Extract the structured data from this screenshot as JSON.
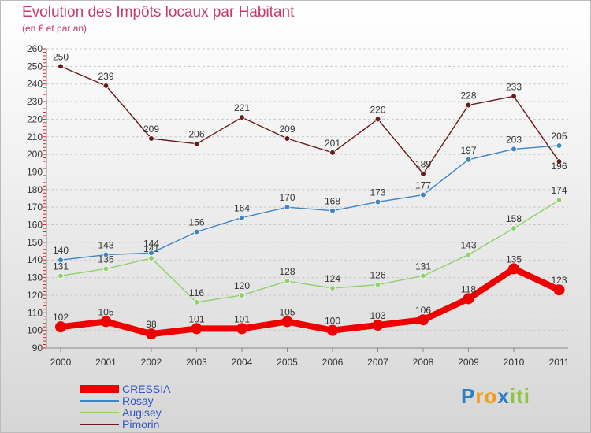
{
  "chart_data": {
    "type": "line",
    "title": "Evolution des Impôts locaux par Habitant",
    "subtitle": "(en € et par an)",
    "x": [
      "2000",
      "2001",
      "2002",
      "2003",
      "2004",
      "2005",
      "2006",
      "2007",
      "2008",
      "2009",
      "2010",
      "2011"
    ],
    "y_ticks": [
      "90",
      "100",
      "110",
      "120",
      "130",
      "140",
      "150",
      "160",
      "170",
      "180",
      "190",
      "200",
      "210",
      "220",
      "230",
      "240",
      "250",
      "260"
    ],
    "ylim": [
      90,
      260
    ],
    "grid": "horizontal dashed",
    "legend_position": "bottom-left",
    "series": [
      {
        "name": "CRESSIA",
        "color": "#ee0000",
        "values": [
          102,
          105,
          98,
          101,
          101,
          105,
          100,
          103,
          106,
          118,
          135,
          123
        ],
        "labels": [
          "102",
          "105",
          "98",
          "101",
          "101",
          "105",
          "100",
          "103",
          "106",
          "118",
          "135",
          "123"
        ]
      },
      {
        "name": "Rosay",
        "color": "#3d85c6",
        "values": [
          140,
          143,
          144,
          156,
          164,
          170,
          168,
          173,
          177,
          197,
          203,
          205
        ],
        "labels": [
          "140",
          "143",
          "144",
          "156",
          "164",
          "170",
          "168",
          "173",
          "177",
          "197",
          "203",
          "205"
        ]
      },
      {
        "name": "Augisey",
        "color": "#8fd16a",
        "values": [
          131,
          135,
          141,
          116,
          120,
          128,
          124,
          126,
          131,
          143,
          158,
          174
        ],
        "labels": [
          "131",
          "135",
          "141",
          "116",
          "120",
          "128",
          "124",
          "126",
          "131",
          "143",
          "158",
          "174"
        ]
      },
      {
        "name": "Pimorin",
        "color": "#6b1a1a",
        "values": [
          250,
          239,
          209,
          206,
          221,
          209,
          201,
          220,
          189,
          228,
          233,
          196
        ],
        "labels": [
          "250",
          "239",
          "209",
          "206",
          "221",
          "209",
          "201",
          "220",
          "189",
          "228",
          "233",
          "196"
        ]
      }
    ]
  },
  "legend": {
    "items": [
      "CRESSIA",
      "Rosay",
      "Augisey",
      "Pimorin"
    ]
  },
  "logo": {
    "letters": [
      "P",
      "r",
      "o",
      "x",
      "i",
      "t",
      "i"
    ],
    "colors": [
      "#2a7fc7",
      "#f29d1a",
      "#f29d1a",
      "#2a7fc7",
      "#8bc53f",
      "#8bc53f",
      "#8bc53f"
    ]
  }
}
